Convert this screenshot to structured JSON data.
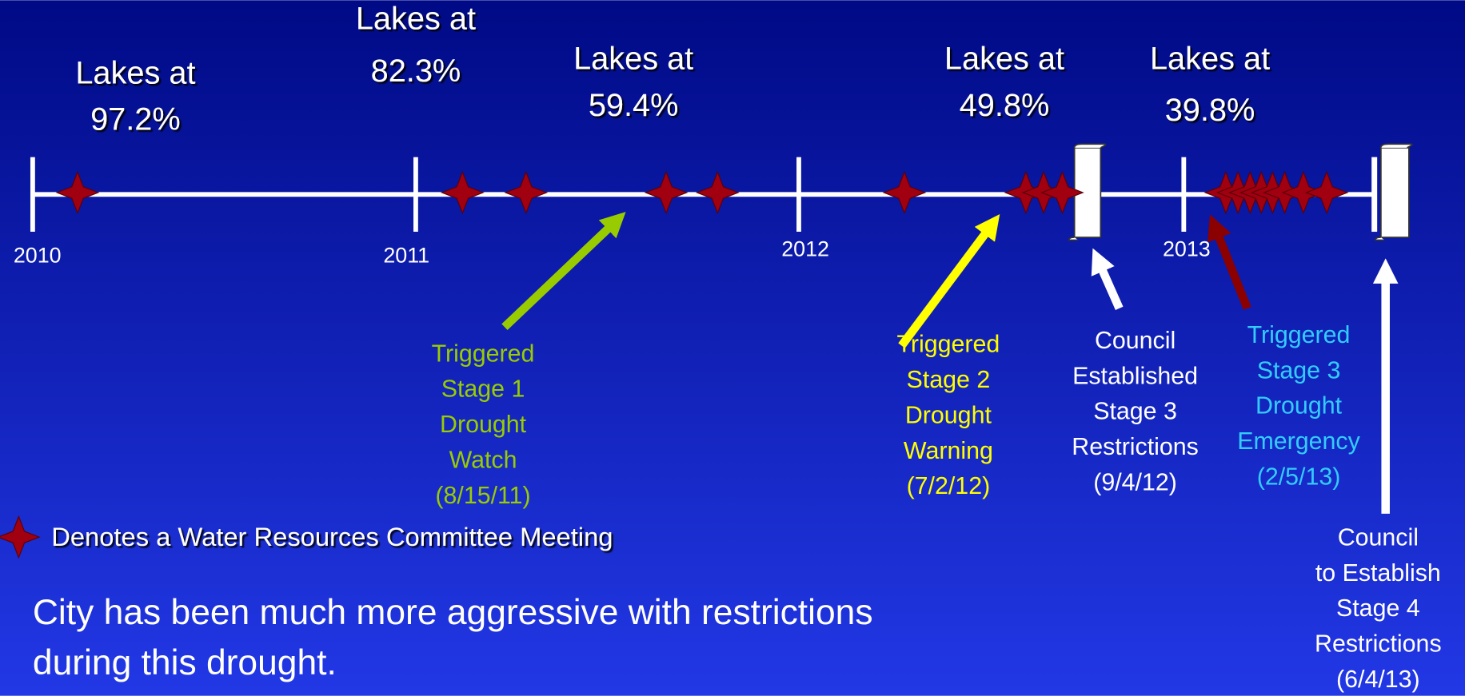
{
  "years": [
    "2010",
    "2011",
    "2012",
    "2013"
  ],
  "lake_levels": [
    {
      "lines": [
        "Lakes at",
        "97.2%"
      ]
    },
    {
      "lines": [
        "Lakes at",
        "82.3%"
      ]
    },
    {
      "lines": [
        "Lakes at",
        "59.4%"
      ]
    },
    {
      "lines": [
        "Lakes at",
        "49.8%"
      ]
    },
    {
      "lines": [
        "Lakes at",
        "39.8%"
      ]
    }
  ],
  "events": [
    {
      "lines": [
        "Triggered",
        "Stage 1",
        "Drought",
        "Watch",
        "(8/15/11)"
      ]
    },
    {
      "lines": [
        "Triggered",
        "Stage 2",
        "Drought",
        "Warning",
        "(7/2/12)"
      ]
    },
    {
      "lines": [
        "Council",
        "Established",
        "Stage 3",
        "Restrictions",
        "(9/4/12)"
      ]
    },
    {
      "lines": [
        "Triggered",
        "Stage 3",
        "Drought",
        "Emergency",
        "(2/5/13)"
      ]
    },
    {
      "lines": [
        "Council",
        "to Establish",
        "Stage 4",
        "Restrictions",
        "(6/4/13)"
      ]
    }
  ],
  "legend": "Denotes a Water Resources Committee Meeting",
  "note": [
    "City has been much more aggressive with restrictions",
    "during this drought."
  ]
}
